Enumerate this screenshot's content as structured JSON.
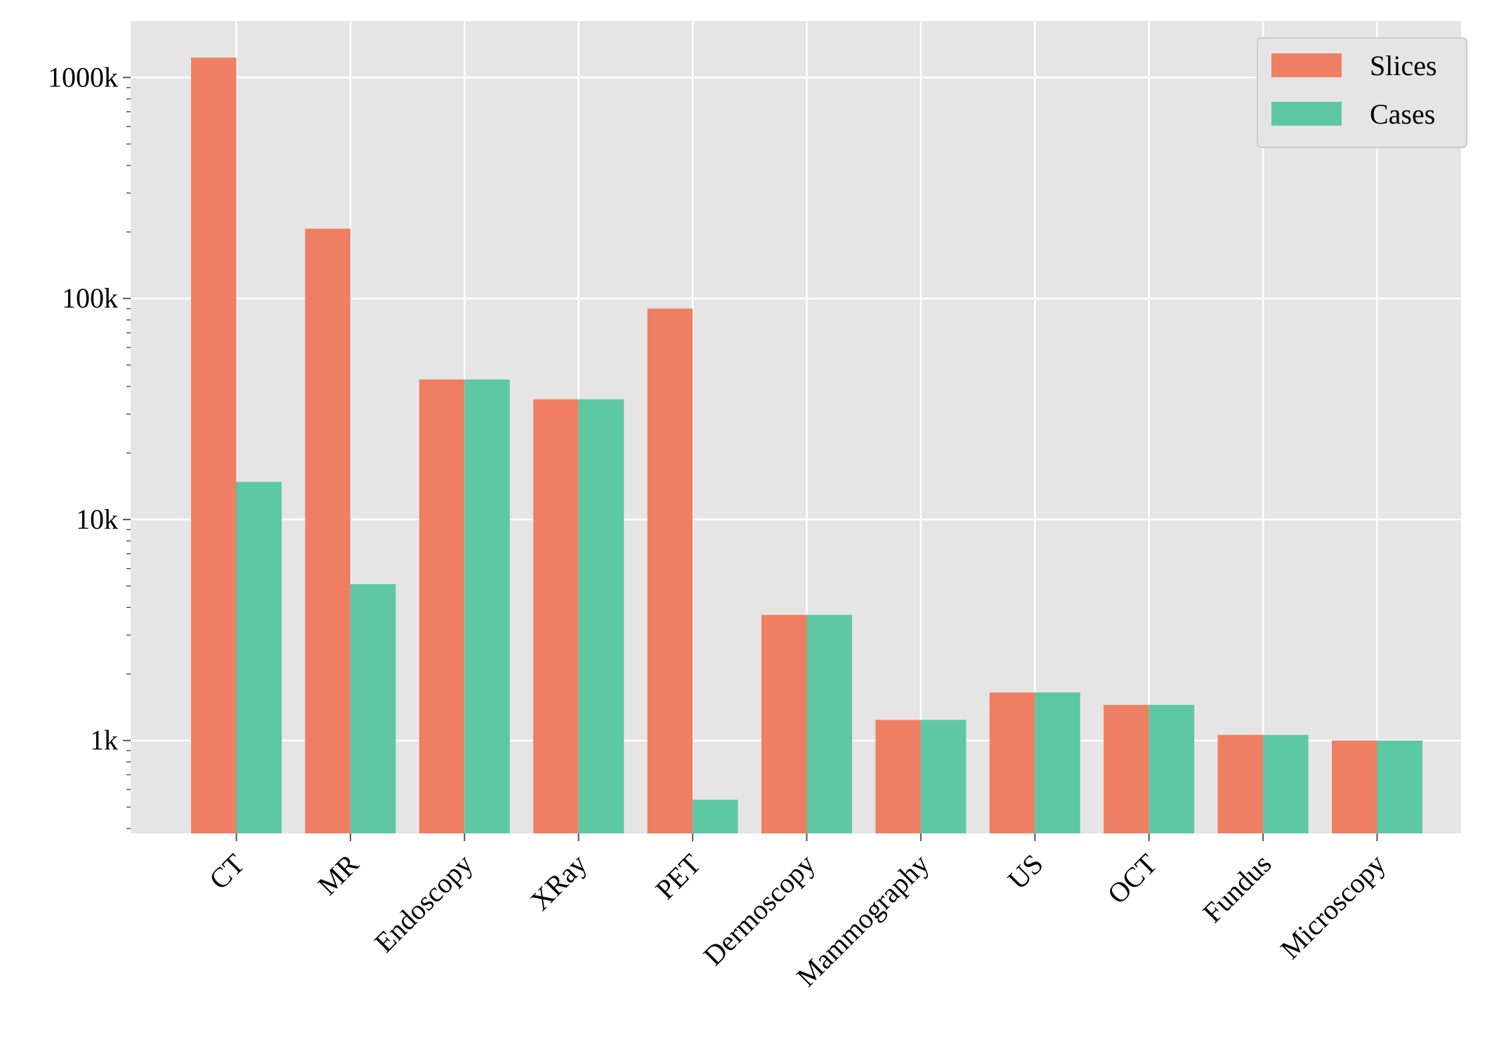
{
  "chart_data": {
    "type": "bar",
    "title": "",
    "xlabel": "",
    "ylabel": "",
    "yscale": "log",
    "ylim": [
      380,
      1800000
    ],
    "grid": true,
    "legend_position": "top-right",
    "categories": [
      "CT",
      "MR",
      "Endoscopy",
      "XRay",
      "PET",
      "Dermoscopy",
      "Mammography",
      "US",
      "OCT",
      "Fundus",
      "Microscopy"
    ],
    "series": [
      {
        "name": "Slices",
        "color": "#ef7f63",
        "values": [
          1230000,
          207000,
          43000,
          35000,
          90000,
          3700,
          1240,
          1650,
          1450,
          1060,
          1000
        ]
      },
      {
        "name": "Cases",
        "color": "#5ec8a5",
        "values": [
          14800,
          5100,
          43000,
          35000,
          540,
          3700,
          1240,
          1650,
          1450,
          1060,
          1000
        ]
      }
    ],
    "yticks": [
      {
        "value": 1000,
        "label": "1k"
      },
      {
        "value": 10000,
        "label": "10k"
      },
      {
        "value": 100000,
        "label": "100k"
      },
      {
        "value": 1000000,
        "label": "1000k"
      }
    ]
  }
}
